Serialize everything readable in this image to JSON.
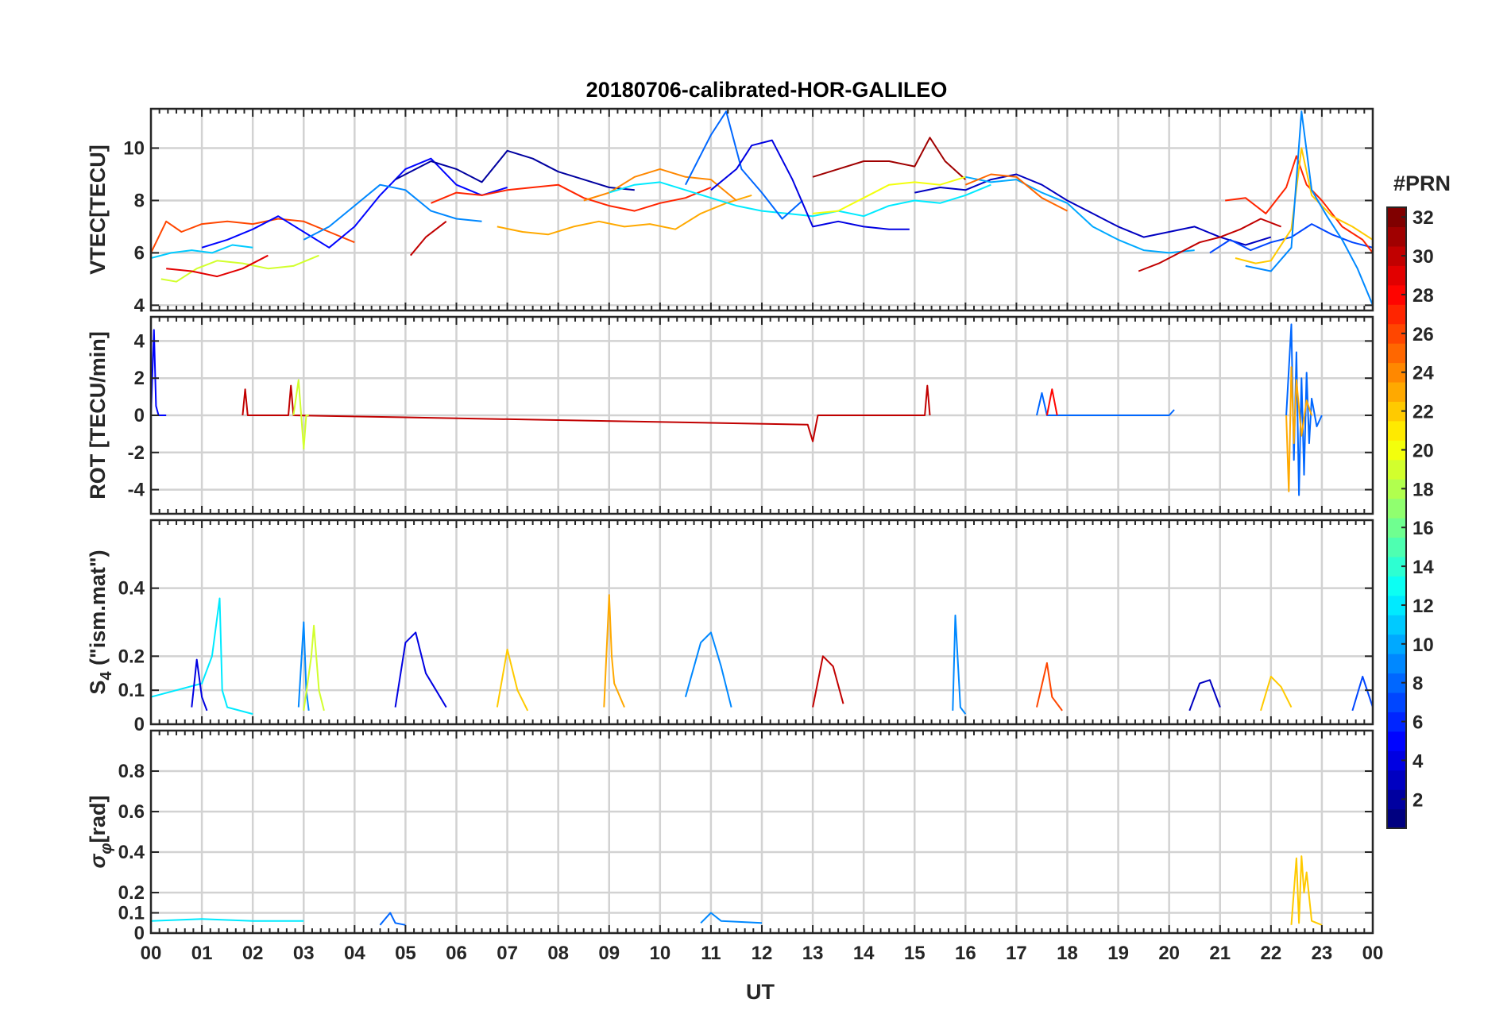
{
  "figure": {
    "title": "20180706-calibrated-HOR-GALILEO",
    "xlabel": "UT",
    "x_tick_labels": [
      "00",
      "01",
      "02",
      "03",
      "04",
      "05",
      "06",
      "07",
      "08",
      "09",
      "10",
      "11",
      "12",
      "13",
      "14",
      "15",
      "16",
      "17",
      "18",
      "19",
      "20",
      "21",
      "22",
      "23",
      "00"
    ]
  },
  "colorbar": {
    "title": "#PRN",
    "range": [
      1,
      32
    ],
    "colormap": "jet",
    "ticks": [
      2,
      4,
      6,
      8,
      10,
      12,
      14,
      16,
      18,
      20,
      22,
      24,
      26,
      28,
      30,
      32
    ]
  },
  "panels": [
    {
      "id": "vtec",
      "ylabel": "VTEC[TECU]",
      "ylim": [
        3.8,
        11.5
      ],
      "yticks": [
        4,
        6,
        8,
        10
      ],
      "ytick_labels": [
        "4",
        "6",
        "8",
        "10"
      ]
    },
    {
      "id": "rot",
      "ylabel": "ROT [TECU/min]",
      "ylim": [
        -5.3,
        5.3
      ],
      "yticks": [
        -4,
        -2,
        0,
        2,
        4
      ],
      "ytick_labels": [
        "-4",
        "-2",
        "0",
        "2",
        "4"
      ]
    },
    {
      "id": "s4",
      "ylabel_main": "S",
      "ylabel_sub": "4",
      "ylabel_rest": " (\"ism.mat\")",
      "ylim": [
        0,
        0.6
      ],
      "yticks": [
        0,
        0.1,
        0.2,
        0.4
      ],
      "ytick_labels": [
        "0",
        "0.1",
        "0.2",
        "0.4"
      ]
    },
    {
      "id": "sigma",
      "ylabel_main": "σ",
      "ylabel_sub": "φ",
      "ylabel_rest": "[rad]",
      "ylim": [
        0,
        1.0
      ],
      "yticks": [
        0,
        0.1,
        0.2,
        0.4,
        0.6,
        0.8
      ],
      "ytick_labels": [
        "0",
        "0.1",
        "0.2",
        "0.4",
        "0.6",
        "0.8"
      ]
    }
  ],
  "chart_data": [
    {
      "type": "line",
      "panel": "VTEC",
      "title": "20180706-calibrated-HOR-GALILEO",
      "ylabel": "VTEC[TECU]",
      "xlabel": "UT",
      "xlim": [
        0,
        24
      ],
      "ylim": [
        3.8,
        11.5
      ],
      "series": [
        {
          "prn": 26,
          "x": [
            0,
            0.3,
            0.6,
            1,
            1.5,
            2,
            2.5,
            3,
            3.5,
            4
          ],
          "y": [
            6.0,
            7.2,
            6.8,
            7.1,
            7.2,
            7.1,
            7.3,
            7.2,
            6.8,
            6.4
          ]
        },
        {
          "prn": 11,
          "x": [
            0,
            0.4,
            0.8,
            1.2,
            1.6,
            2
          ],
          "y": [
            5.8,
            6.0,
            6.1,
            6.0,
            6.3,
            6.2
          ]
        },
        {
          "prn": 19,
          "x": [
            0.2,
            0.5,
            0.9,
            1.3,
            1.8,
            2.3,
            2.8,
            3.3
          ],
          "y": [
            5.0,
            4.9,
            5.4,
            5.7,
            5.6,
            5.4,
            5.5,
            5.9
          ]
        },
        {
          "prn": 29,
          "x": [
            0.3,
            0.8,
            1.3,
            1.8,
            2.3
          ],
          "y": [
            5.4,
            5.3,
            5.1,
            5.4,
            5.9
          ]
        },
        {
          "prn": 5,
          "x": [
            1,
            1.5,
            2,
            2.5,
            3,
            3.5,
            4,
            4.5,
            5,
            5.5,
            6,
            6.5,
            7
          ],
          "y": [
            6.2,
            6.5,
            6.9,
            7.4,
            6.8,
            6.2,
            7.0,
            8.2,
            9.2,
            9.6,
            8.6,
            8.2,
            8.5
          ]
        },
        {
          "prn": 9,
          "x": [
            3,
            3.5,
            4,
            4.5,
            5,
            5.5,
            6,
            6.5
          ],
          "y": [
            6.5,
            7.0,
            7.8,
            8.6,
            8.4,
            7.6,
            7.3,
            7.2
          ]
        },
        {
          "prn": 30,
          "x": [
            5.1,
            5.4,
            5.8
          ],
          "y": [
            5.9,
            6.6,
            7.2
          ]
        },
        {
          "prn": 2,
          "x": [
            4.8,
            5.5,
            6,
            6.5,
            7,
            7.5,
            8,
            8.5,
            9,
            9.5
          ],
          "y": [
            8.8,
            9.5,
            9.2,
            8.7,
            9.9,
            9.6,
            9.1,
            8.8,
            8.5,
            8.4
          ]
        },
        {
          "prn": 27,
          "x": [
            5.5,
            6,
            6.5,
            7,
            7.5,
            8,
            8.5,
            9,
            9.5,
            10,
            10.5,
            11
          ],
          "y": [
            7.9,
            8.3,
            8.2,
            8.4,
            8.5,
            8.6,
            8.1,
            7.8,
            7.6,
            7.9,
            8.1,
            8.5
          ]
        },
        {
          "prn": 23,
          "x": [
            6.8,
            7.3,
            7.8,
            8.3,
            8.8,
            9.3,
            9.8,
            10.3,
            10.8,
            11.3,
            11.8
          ],
          "y": [
            7.0,
            6.8,
            6.7,
            7.0,
            7.2,
            7.0,
            7.1,
            6.9,
            7.5,
            7.9,
            8.2
          ]
        },
        {
          "prn": 24,
          "x": [
            8.5,
            9,
            9.5,
            10,
            10.5,
            11,
            11.5
          ],
          "y": [
            8.0,
            8.3,
            8.9,
            9.2,
            8.9,
            8.8,
            8.0
          ]
        },
        {
          "prn": 12,
          "x": [
            9,
            9.5,
            10,
            10.5,
            11,
            11.5,
            12,
            12.5,
            13,
            13.5,
            14,
            14.5,
            15,
            15.5,
            16,
            16.5
          ],
          "y": [
            8.3,
            8.6,
            8.7,
            8.4,
            8.1,
            7.8,
            7.6,
            7.5,
            7.4,
            7.6,
            7.4,
            7.8,
            8.0,
            7.9,
            8.2,
            8.6
          ]
        },
        {
          "prn": 8,
          "x": [
            10.5,
            11,
            11.3,
            11.6,
            12,
            12.4,
            12.8
          ],
          "y": [
            8.6,
            10.5,
            11.4,
            9.2,
            8.3,
            7.3,
            8.0
          ]
        },
        {
          "prn": 4,
          "x": [
            11,
            11.5,
            11.8,
            12.2,
            12.6,
            13,
            13.5,
            14,
            14.5,
            14.9
          ],
          "y": [
            8.4,
            9.2,
            10.1,
            10.3,
            8.8,
            7.0,
            7.2,
            7.0,
            6.9,
            6.9
          ]
        },
        {
          "prn": 31,
          "x": [
            13,
            13.5,
            14,
            14.5,
            15,
            15.3,
            15.6,
            16
          ],
          "y": [
            8.9,
            9.2,
            9.5,
            9.5,
            9.3,
            10.4,
            9.5,
            8.8
          ]
        },
        {
          "prn": 20,
          "x": [
            13,
            13.5,
            14,
            14.5,
            15,
            15.5,
            16
          ],
          "y": [
            7.5,
            7.6,
            8.1,
            8.6,
            8.7,
            8.6,
            8.9
          ]
        },
        {
          "prn": 3,
          "x": [
            15,
            15.5,
            16,
            16.5,
            17,
            17.5,
            18,
            18.5,
            19,
            19.5,
            20,
            20.5,
            21,
            21.5,
            22
          ],
          "y": [
            8.3,
            8.5,
            8.4,
            8.8,
            9.0,
            8.6,
            8.0,
            7.5,
            7.0,
            6.6,
            6.8,
            7.0,
            6.6,
            6.3,
            6.6
          ]
        },
        {
          "prn": 10,
          "x": [
            16,
            16.5,
            17,
            17.5,
            18,
            18.5,
            19,
            19.5,
            20,
            20.5
          ],
          "y": [
            8.9,
            8.7,
            8.8,
            8.3,
            7.9,
            7.0,
            6.5,
            6.1,
            6.0,
            6.1
          ]
        },
        {
          "prn": 25,
          "x": [
            16,
            16.5,
            17,
            17.5,
            18
          ],
          "y": [
            8.6,
            9.0,
            8.9,
            8.1,
            7.6
          ]
        },
        {
          "prn": 30,
          "x": [
            19.4,
            19.8,
            20.2,
            20.6,
            21,
            21.4,
            21.8,
            22.2
          ],
          "y": [
            5.3,
            5.6,
            6.0,
            6.4,
            6.6,
            6.9,
            7.3,
            7.0
          ]
        },
        {
          "prn": 7,
          "x": [
            20.8,
            21.2,
            21.6,
            22,
            22.4,
            22.8,
            23.2,
            23.6,
            24
          ],
          "y": [
            6.0,
            6.5,
            6.1,
            6.4,
            6.6,
            7.1,
            6.7,
            6.4,
            6.2
          ]
        },
        {
          "prn": 27,
          "x": [
            21.1,
            21.5,
            21.9,
            22.3,
            22.5,
            22.7,
            23,
            23.4,
            23.8,
            24
          ],
          "y": [
            8.0,
            8.1,
            7.5,
            8.5,
            9.7,
            8.6,
            8.0,
            7.0,
            6.5,
            6.0
          ]
        },
        {
          "prn": 22,
          "x": [
            21.3,
            21.7,
            22,
            22.4,
            22.6,
            22.8,
            23.2,
            23.6,
            24
          ],
          "y": [
            5.8,
            5.6,
            5.7,
            6.9,
            10.0,
            8.2,
            7.4,
            7.0,
            6.5
          ]
        },
        {
          "prn": 9,
          "x": [
            21.5,
            22,
            22.4,
            22.6,
            22.8,
            23.1,
            23.4,
            23.7,
            24
          ],
          "y": [
            5.5,
            5.3,
            6.2,
            11.4,
            8.4,
            7.4,
            6.5,
            5.4,
            4.0
          ]
        }
      ]
    },
    {
      "type": "line",
      "panel": "ROT",
      "ylabel": "ROT [TECU/min]",
      "xlim": [
        0,
        24
      ],
      "ylim": [
        -5.3,
        5.3
      ],
      "series": [
        {
          "prn": 5,
          "x": [
            0,
            0.06,
            0.1,
            0.15,
            0.3
          ],
          "y": [
            0,
            4.6,
            0.5,
            0,
            0
          ]
        },
        {
          "prn": 30,
          "x": [
            1.8,
            1.85,
            1.9,
            2.7,
            2.75,
            2.8,
            12.9,
            13,
            13.1,
            15.2,
            15.25,
            15.3
          ],
          "y": [
            0,
            1.4,
            0,
            0,
            1.6,
            0,
            -0.5,
            -1.4,
            0,
            0,
            1.6,
            0
          ]
        },
        {
          "prn": 19,
          "x": [
            2.8,
            2.9,
            3,
            3.05,
            3.1
          ],
          "y": [
            0,
            1.9,
            -1.8,
            0,
            0
          ]
        },
        {
          "prn": 8,
          "x": [
            17.4,
            17.5,
            17.6,
            20,
            20.1
          ],
          "y": [
            0,
            1.2,
            0,
            0,
            0.3
          ]
        },
        {
          "prn": 28,
          "x": [
            17.6,
            17.7,
            17.8
          ],
          "y": [
            0,
            1.4,
            0
          ]
        },
        {
          "prn": 8,
          "x": [
            22.3,
            22.4,
            22.45,
            22.5,
            22.55,
            22.6,
            22.65,
            22.7,
            22.75,
            22.8,
            22.9,
            23
          ],
          "y": [
            0,
            4.9,
            -2.4,
            3.4,
            -4.3,
            2.0,
            -3.2,
            2.3,
            -1.5,
            0.9,
            -0.6,
            0
          ]
        },
        {
          "prn": 23,
          "x": [
            22.3,
            22.35,
            22.4,
            22.45,
            22.5,
            22.6,
            22.7,
            22.8
          ],
          "y": [
            0,
            -4.1,
            2.6,
            -1.5,
            1.9,
            -1.1,
            0.8,
            0
          ]
        }
      ]
    },
    {
      "type": "line",
      "panel": "S4",
      "ylabel": "S4 (\"ism.mat\")",
      "xlim": [
        0,
        24
      ],
      "ylim": [
        0,
        0.6
      ],
      "series": [
        {
          "prn": 12,
          "x": [
            0,
            0.5,
            1,
            1.2,
            1.35,
            1.4,
            1.5,
            2
          ],
          "y": [
            0.08,
            0.1,
            0.12,
            0.2,
            0.37,
            0.1,
            0.05,
            0.03
          ]
        },
        {
          "prn": 4,
          "x": [
            0.8,
            0.9,
            1,
            1.1
          ],
          "y": [
            0.05,
            0.19,
            0.08,
            0.04
          ]
        },
        {
          "prn": 9,
          "x": [
            2.9,
            3,
            3.05,
            3.1
          ],
          "y": [
            0.05,
            0.3,
            0.1,
            0.04
          ]
        },
        {
          "prn": 19,
          "x": [
            3,
            3.15,
            3.2,
            3.3,
            3.4
          ],
          "y": [
            0.04,
            0.2,
            0.29,
            0.1,
            0.04
          ]
        },
        {
          "prn": 4,
          "x": [
            4.8,
            5,
            5.2,
            5.4,
            5.6,
            5.8
          ],
          "y": [
            0.05,
            0.24,
            0.27,
            0.15,
            0.1,
            0.05
          ]
        },
        {
          "prn": 22,
          "x": [
            6.8,
            7,
            7.2,
            7.4
          ],
          "y": [
            0.05,
            0.22,
            0.1,
            0.04
          ]
        },
        {
          "prn": 23,
          "x": [
            8.9,
            9,
            9.05,
            9.1,
            9.3
          ],
          "y": [
            0.05,
            0.38,
            0.2,
            0.12,
            0.05
          ]
        },
        {
          "prn": 9,
          "x": [
            10.5,
            10.8,
            11,
            11.2,
            11.4
          ],
          "y": [
            0.08,
            0.24,
            0.27,
            0.17,
            0.05
          ]
        },
        {
          "prn": 30,
          "x": [
            13,
            13.2,
            13.4,
            13.6
          ],
          "y": [
            0.05,
            0.2,
            0.17,
            0.06
          ]
        },
        {
          "prn": 9,
          "x": [
            15.75,
            15.8,
            15.9,
            16
          ],
          "y": [
            0.04,
            0.32,
            0.05,
            0.03
          ]
        },
        {
          "prn": 26,
          "x": [
            17.4,
            17.6,
            17.7,
            17.9
          ],
          "y": [
            0.05,
            0.18,
            0.08,
            0.04
          ]
        },
        {
          "prn": 3,
          "x": [
            20.4,
            20.6,
            20.8,
            21
          ],
          "y": [
            0.04,
            0.12,
            0.13,
            0.05
          ]
        },
        {
          "prn": 22,
          "x": [
            21.8,
            22,
            22.2,
            22.4
          ],
          "y": [
            0.04,
            0.14,
            0.11,
            0.05
          ]
        },
        {
          "prn": 7,
          "x": [
            23.6,
            23.8,
            24
          ],
          "y": [
            0.04,
            0.14,
            0.05
          ]
        }
      ]
    },
    {
      "type": "line",
      "panel": "sigma_phi",
      "ylabel": "σφ[rad]",
      "xlabel": "UT",
      "xlim": [
        0,
        24
      ],
      "ylim": [
        0,
        1.0
      ],
      "series": [
        {
          "prn": 12,
          "x": [
            0,
            1,
            2,
            3
          ],
          "y": [
            0.06,
            0.07,
            0.06,
            0.06
          ]
        },
        {
          "prn": 8,
          "x": [
            4.5,
            4.7,
            4.8,
            5
          ],
          "y": [
            0.04,
            0.1,
            0.05,
            0.04
          ]
        },
        {
          "prn": 9,
          "x": [
            10.8,
            11,
            11.2,
            12
          ],
          "y": [
            0.05,
            0.1,
            0.06,
            0.05
          ]
        },
        {
          "prn": 22,
          "x": [
            22.4,
            22.5,
            22.55,
            22.6,
            22.65,
            22.7,
            22.8,
            23
          ],
          "y": [
            0.04,
            0.37,
            0.05,
            0.38,
            0.2,
            0.3,
            0.06,
            0.04
          ]
        }
      ]
    }
  ]
}
